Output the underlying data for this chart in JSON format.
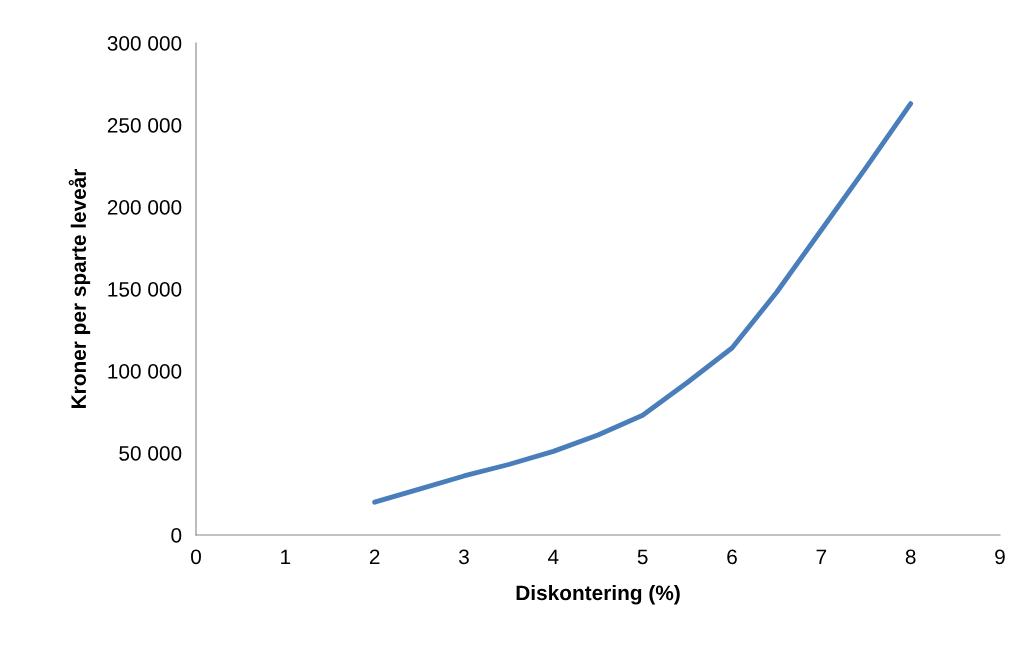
{
  "chart_data": {
    "type": "line",
    "xlabel": "Diskontering (%)",
    "ylabel": "Kroner per sparte leveår",
    "x": [
      2,
      2.5,
      3,
      3.5,
      4,
      4.5,
      5,
      5.5,
      6,
      6.5,
      7,
      7.5,
      8
    ],
    "series": [
      {
        "color": "#4a7ebb",
        "values": [
          20000,
          28000,
          36000,
          43000,
          51000,
          61000,
          73000,
          93000,
          114000,
          148000,
          186000,
          224000,
          263000
        ]
      }
    ],
    "xlim": [
      0,
      9
    ],
    "xticks": [
      0,
      1,
      2,
      3,
      4,
      5,
      6,
      7,
      8,
      9
    ],
    "ylim": [
      0,
      300000
    ],
    "yticks": [
      0,
      {
        "value": 50000,
        "label": "50 000"
      },
      {
        "value": 100000,
        "label": "100 000"
      },
      {
        "value": 150000,
        "label": "150 000"
      },
      {
        "value": 200000,
        "label": "200 000"
      },
      {
        "value": 250000,
        "label": "250 000"
      },
      {
        "value": 300000,
        "label": "300 000"
      }
    ],
    "grid": false,
    "legend": false,
    "marker": "none",
    "line_style": "solid"
  }
}
